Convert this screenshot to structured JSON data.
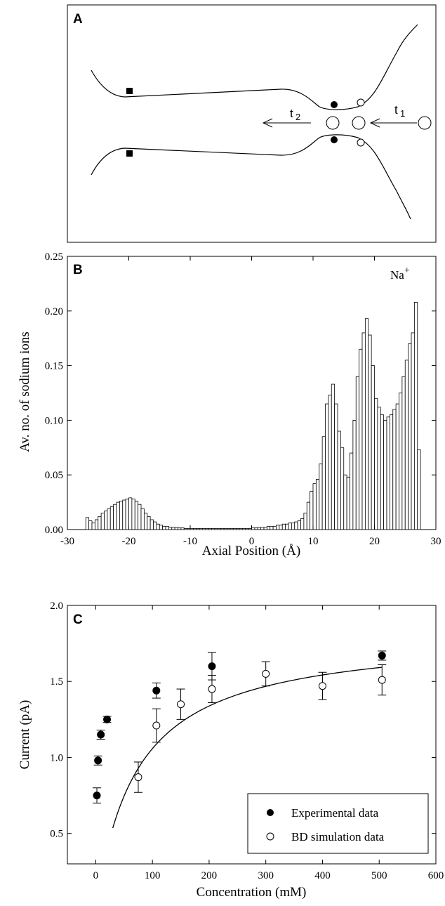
{
  "panels": {
    "a": {
      "label": "A",
      "arrow_left_label": "t",
      "arrow_left_sub": "2",
      "arrow_right_label": "t",
      "arrow_right_sub": "1"
    }
  },
  "chart_data": [
    {
      "id": "B",
      "panel_label": "B",
      "type": "bar",
      "title": "",
      "annotation": "Na",
      "annotation_sup": "+",
      "xlabel": "Axial Position (Å)",
      "ylabel": "Av. no. of sodium ions",
      "xlim": [
        -30,
        30
      ],
      "ylim": [
        0,
        0.25
      ],
      "xticks": [
        -30,
        -20,
        -10,
        0,
        10,
        20,
        30
      ],
      "yticks": [
        0.0,
        0.05,
        0.1,
        0.15,
        0.2,
        0.25
      ],
      "ytick_labels": [
        "0.00",
        "0.05",
        "0.10",
        "0.15",
        "0.20",
        "0.25"
      ],
      "bin_width": 0.5,
      "bin_start": -27,
      "values": [
        0.011,
        0.008,
        0.006,
        0.009,
        0.012,
        0.015,
        0.017,
        0.019,
        0.021,
        0.023,
        0.025,
        0.026,
        0.027,
        0.028,
        0.029,
        0.028,
        0.026,
        0.023,
        0.019,
        0.015,
        0.012,
        0.009,
        0.007,
        0.005,
        0.004,
        0.003,
        0.003,
        0.002,
        0.002,
        0.002,
        0.0015,
        0.0015,
        0.001,
        0.001,
        0.001,
        0.001,
        0.001,
        0.001,
        0.001,
        0.001,
        0.001,
        0.001,
        0.001,
        0.001,
        0.001,
        0.001,
        0.001,
        0.001,
        0.001,
        0.001,
        0.001,
        0.001,
        0.001,
        0.001,
        0.0015,
        0.0015,
        0.002,
        0.002,
        0.002,
        0.003,
        0.003,
        0.003,
        0.004,
        0.004,
        0.005,
        0.005,
        0.006,
        0.006,
        0.007,
        0.008,
        0.01,
        0.015,
        0.025,
        0.035,
        0.042,
        0.046,
        0.06,
        0.085,
        0.115,
        0.123,
        0.133,
        0.115,
        0.09,
        0.075,
        0.05,
        0.048,
        0.07,
        0.1,
        0.14,
        0.165,
        0.18,
        0.193,
        0.178,
        0.15,
        0.12,
        0.112,
        0.105,
        0.1,
        0.103,
        0.105,
        0.11,
        0.115,
        0.125,
        0.14,
        0.155,
        0.17,
        0.18,
        0.208,
        0.073
      ]
    },
    {
      "id": "C",
      "panel_label": "C",
      "type": "scatter",
      "title": "",
      "xlabel": "Concentration (mM)",
      "ylabel": "Current (pA)",
      "xlim": [
        -50,
        600
      ],
      "ylim": [
        0.3,
        2.0
      ],
      "xticks": [
        0,
        100,
        200,
        300,
        400,
        500,
        600
      ],
      "yticks": [
        0.5,
        1.0,
        1.5,
        2.0
      ],
      "ytick_labels": [
        "0.5",
        "1.0",
        "1.5",
        "2.0"
      ],
      "legend_position": "bottom-right",
      "series": [
        {
          "name": "Experimental data",
          "marker": "filled-circle",
          "points": [
            {
              "x": 2,
              "y": 0.75,
              "err": 0.05
            },
            {
              "x": 4,
              "y": 0.98,
              "err": 0.03
            },
            {
              "x": 9,
              "y": 1.15,
              "err": 0.03
            },
            {
              "x": 20,
              "y": 1.25,
              "err": 0.02
            },
            {
              "x": 107,
              "y": 1.44,
              "err": 0.05
            },
            {
              "x": 205,
              "y": 1.6,
              "err": 0.09
            },
            {
              "x": 505,
              "y": 1.67,
              "err": 0.03
            }
          ]
        },
        {
          "name": "BD simulation data",
          "marker": "open-circle",
          "points": [
            {
              "x": 75,
              "y": 0.87,
              "err": 0.1
            },
            {
              "x": 107,
              "y": 1.21,
              "err": 0.11
            },
            {
              "x": 150,
              "y": 1.35,
              "err": 0.1
            },
            {
              "x": 205,
              "y": 1.45,
              "err": 0.09
            },
            {
              "x": 300,
              "y": 1.55,
              "err": 0.08
            },
            {
              "x": 400,
              "y": 1.47,
              "err": 0.09
            },
            {
              "x": 505,
              "y": 1.51,
              "err": 0.1
            }
          ]
        }
      ],
      "fit_curve": {
        "model": "michaelis-menten",
        "imax": 1.82,
        "ks": 72,
        "x_range": [
          30,
          505
        ]
      }
    }
  ]
}
